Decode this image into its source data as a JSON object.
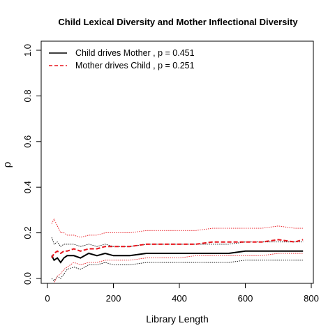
{
  "chart_data": {
    "type": "line",
    "title": "Child Lexical Diversity and Mother Inflectional Diversity",
    "xlabel": "Library Length",
    "ylabel": "ρ",
    "xlim": [
      0,
      800
    ],
    "ylim": [
      0,
      1
    ],
    "x_ticks": [
      "0",
      "200",
      "400",
      "600",
      "800"
    ],
    "y_ticks": [
      "0.0",
      "0.2",
      "0.4",
      "0.6",
      "0.8",
      "1.0"
    ],
    "legend_position": "top-left",
    "grid": false,
    "x": [
      13,
      20,
      30,
      40,
      50,
      60,
      80,
      100,
      125,
      150,
      175,
      200,
      250,
      300,
      350,
      400,
      450,
      500,
      550,
      600,
      650,
      700,
      750,
      775
    ],
    "series": [
      {
        "name": "Child drives Mother , p = 0.451",
        "legend": "Child drives Mother , p = 0.451",
        "color": "#000000",
        "line": "solid",
        "values": [
          0.1,
          0.08,
          0.09,
          0.07,
          0.09,
          0.1,
          0.1,
          0.09,
          0.11,
          0.1,
          0.11,
          0.1,
          0.1,
          0.11,
          0.11,
          0.11,
          0.11,
          0.11,
          0.11,
          0.12,
          0.12,
          0.12,
          0.12,
          0.12
        ],
        "band_upper": [
          0.18,
          0.15,
          0.16,
          0.14,
          0.15,
          0.15,
          0.15,
          0.14,
          0.15,
          0.14,
          0.15,
          0.14,
          0.14,
          0.15,
          0.15,
          0.15,
          0.15,
          0.15,
          0.15,
          0.16,
          0.16,
          0.16,
          0.16,
          0.16
        ],
        "band_lower": [
          0.0,
          -0.01,
          0.01,
          0.0,
          0.02,
          0.04,
          0.05,
          0.04,
          0.06,
          0.06,
          0.07,
          0.06,
          0.06,
          0.07,
          0.07,
          0.07,
          0.07,
          0.07,
          0.07,
          0.08,
          0.08,
          0.08,
          0.08,
          0.08
        ]
      },
      {
        "name": "Mother drives Child , p = 0.251",
        "legend": "Mother drives Child , p = 0.251",
        "color": "#e8141c",
        "line": "dashed",
        "values": [
          0.09,
          0.11,
          0.12,
          0.11,
          0.12,
          0.12,
          0.13,
          0.12,
          0.13,
          0.13,
          0.14,
          0.14,
          0.14,
          0.15,
          0.15,
          0.15,
          0.15,
          0.16,
          0.16,
          0.16,
          0.16,
          0.17,
          0.16,
          0.17
        ],
        "band_upper": [
          0.24,
          0.26,
          0.23,
          0.2,
          0.2,
          0.19,
          0.19,
          0.18,
          0.19,
          0.19,
          0.2,
          0.2,
          0.2,
          0.21,
          0.21,
          0.21,
          0.21,
          0.22,
          0.22,
          0.22,
          0.22,
          0.23,
          0.22,
          0.22
        ],
        "band_lower": [
          -0.03,
          -0.02,
          0.01,
          0.02,
          0.04,
          0.05,
          0.07,
          0.06,
          0.07,
          0.07,
          0.08,
          0.08,
          0.08,
          0.09,
          0.09,
          0.09,
          0.1,
          0.1,
          0.1,
          0.1,
          0.1,
          0.11,
          0.11,
          0.11
        ]
      }
    ]
  }
}
